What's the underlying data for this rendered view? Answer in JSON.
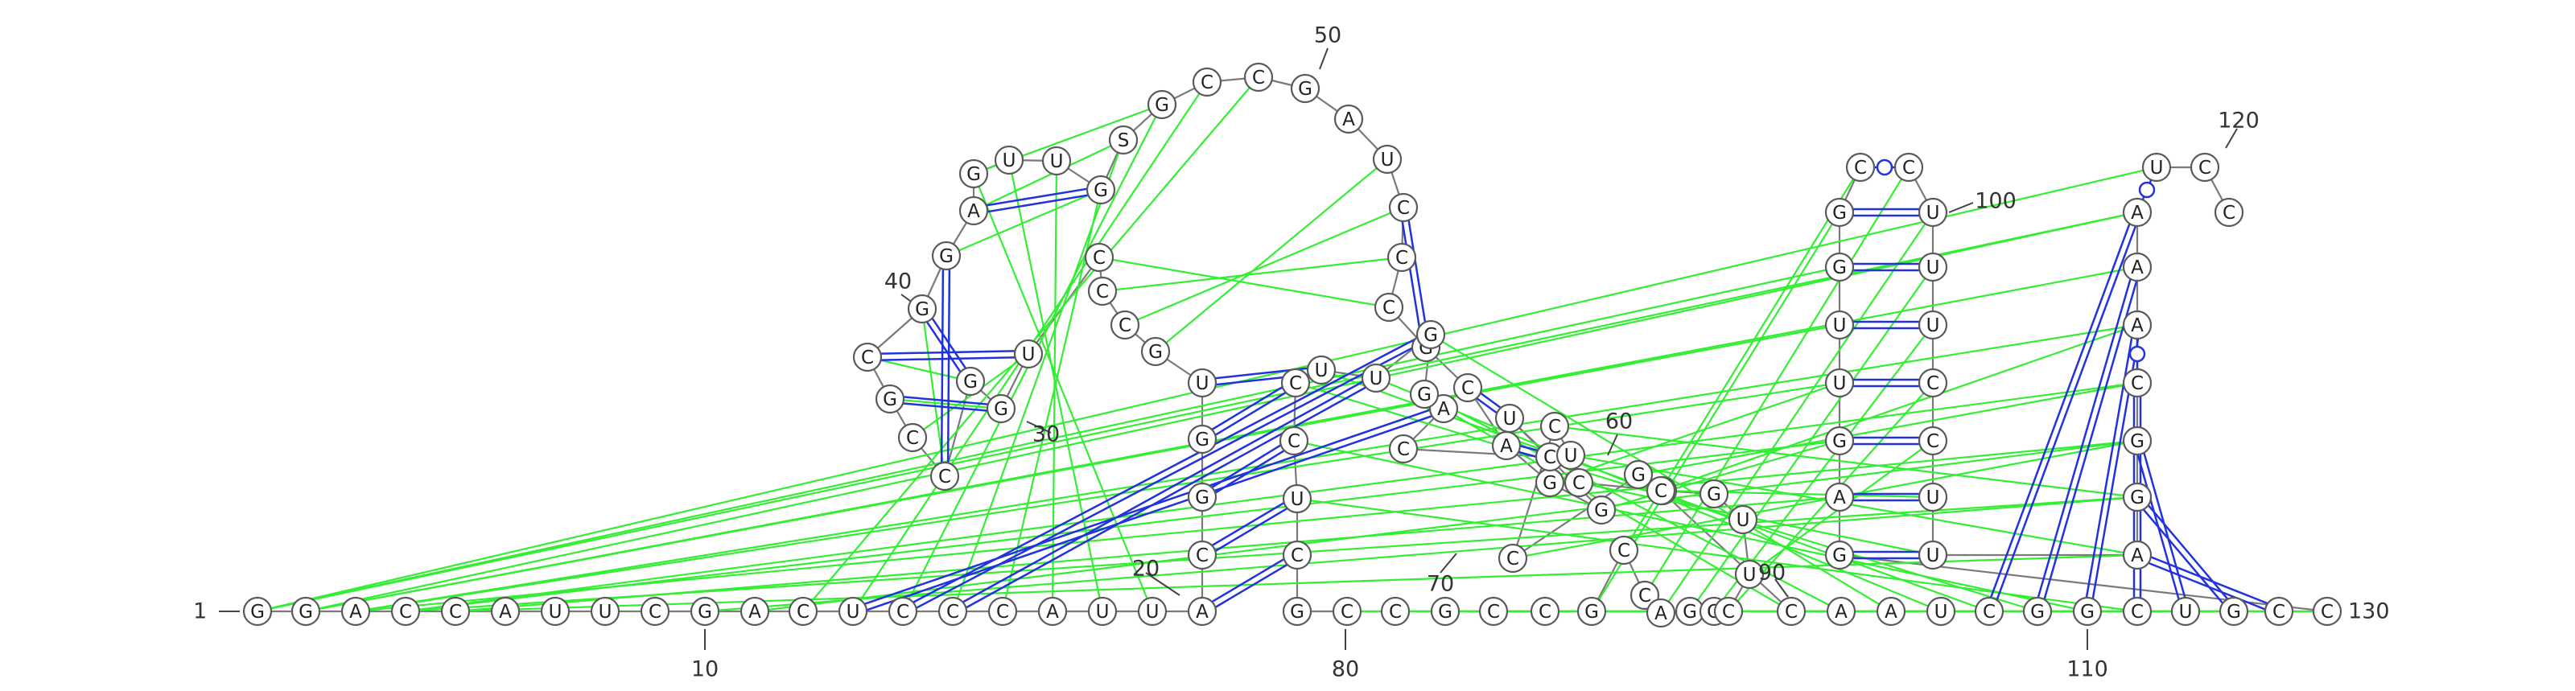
{
  "sequence": "GGACCAUUCGACUCCCAUUACGGUGCCCUGGCCGCGGAGUUGSGCCGAUCCCGCAGGUCCAGGUUCCUCGCCGCCGCCAGGCUUGUCUCCGCCAAUCGGCUGCCGAGUUGGCCUUUCCUUAGGCAAAUCC",
  "start_label": "1",
  "end_label": "130",
  "position_labels": [
    "10",
    "20",
    "30",
    "40",
    "50",
    "60",
    "70",
    "80",
    "90",
    "100",
    "110",
    "120"
  ],
  "colors": {
    "canonical_pair": "#2233dd",
    "tertiary_interaction": "#33ee33",
    "backbone": "#7a7a7a"
  }
}
